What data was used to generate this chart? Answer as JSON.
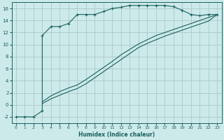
{
  "xlabel": "Humidex (Indice chaleur)",
  "xlim": [
    -0.5,
    23.5
  ],
  "ylim": [
    -3,
    17
  ],
  "xticks": [
    0,
    1,
    2,
    3,
    4,
    5,
    6,
    7,
    8,
    9,
    10,
    11,
    12,
    13,
    14,
    15,
    16,
    17,
    18,
    19,
    20,
    21,
    22,
    23
  ],
  "yticks": [
    -2,
    0,
    2,
    4,
    6,
    8,
    10,
    12,
    14,
    16
  ],
  "bg_color": "#cdeaea",
  "grid_color": "#b0cccc",
  "line_color": "#1a6060",
  "line1_x": [
    0,
    1,
    2,
    3,
    3,
    4,
    5,
    6,
    7,
    8,
    9,
    10,
    11,
    12,
    13,
    14,
    15,
    16,
    17,
    18,
    19,
    20,
    21,
    22,
    23
  ],
  "line1_y": [
    -2,
    -2,
    -2,
    -1,
    11.5,
    13,
    13,
    13.5,
    15,
    15,
    15,
    15.5,
    16,
    16.2,
    16.5,
    16.5,
    16.5,
    16.5,
    16.5,
    16.3,
    15.7,
    15,
    14.8,
    15,
    15
  ],
  "line2_x": [
    3,
    4,
    5,
    6,
    7,
    8,
    9,
    10,
    11,
    12,
    13,
    14,
    15,
    16,
    17,
    18,
    19,
    20,
    21,
    22,
    23
  ],
  "line2_y": [
    0.5,
    1.5,
    2.2,
    2.8,
    3.3,
    4.2,
    5.2,
    6.2,
    7.2,
    8.3,
    9.2,
    10.1,
    10.8,
    11.5,
    12.0,
    12.5,
    13.0,
    13.5,
    14.0,
    14.5,
    15.0
  ],
  "line3_x": [
    3,
    4,
    5,
    6,
    7,
    8,
    9,
    10,
    11,
    12,
    13,
    14,
    15,
    16,
    17,
    18,
    19,
    20,
    21,
    22,
    23
  ],
  "line3_y": [
    0.2,
    1.0,
    1.6,
    2.2,
    2.7,
    3.5,
    4.5,
    5.5,
    6.5,
    7.5,
    8.5,
    9.5,
    10.2,
    10.8,
    11.4,
    11.9,
    12.4,
    12.9,
    13.4,
    13.9,
    15.0
  ]
}
